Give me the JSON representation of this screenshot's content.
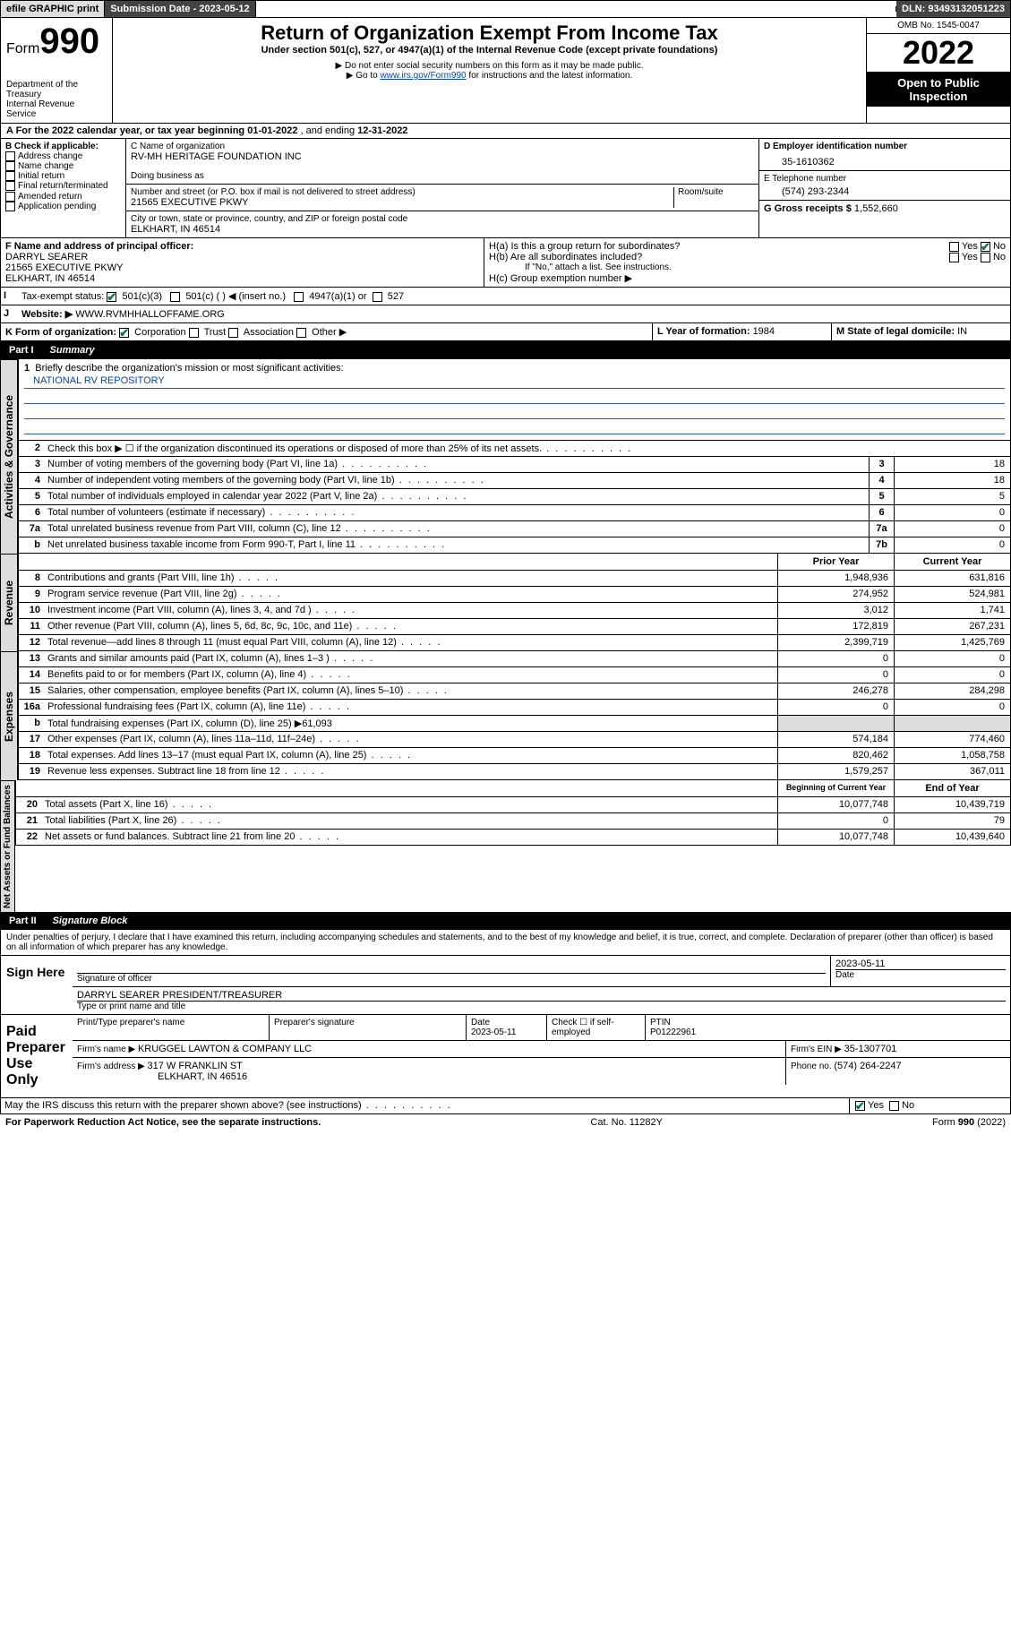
{
  "topbar": {
    "efile": "efile GRAPHIC print",
    "subdate_lbl": "Submission Date - ",
    "subdate": "2023-05-12",
    "dln_lbl": "DLN: ",
    "dln": "93493132051223"
  },
  "header": {
    "form_word": "Form",
    "form_num": "990",
    "dept": "Department of the Treasury",
    "irs": "Internal Revenue Service",
    "title": "Return of Organization Exempt From Income Tax",
    "subtitle": "Under section 501(c), 527, or 4947(a)(1) of the Internal Revenue Code (except private foundations)",
    "note1": "▶ Do not enter social security numbers on this form as it may be made public.",
    "note2_pre": "▶ Go to ",
    "note2_link": "www.irs.gov/Form990",
    "note2_post": " for instructions and the latest information.",
    "omb": "OMB No. 1545-0047",
    "year": "2022",
    "open": "Open to Public Inspection"
  },
  "row_a": {
    "text": "A For the 2022 calendar year, or tax year beginning ",
    "begin": "01-01-2022",
    "mid": " , and ending ",
    "end": "12-31-2022"
  },
  "col_b": {
    "title": "B Check if applicable:",
    "opts": [
      "Address change",
      "Name change",
      "Initial return",
      "Final return/terminated",
      "Amended return",
      "Application pending"
    ]
  },
  "col_c": {
    "name_lbl": "C Name of organization",
    "name": "RV-MH HERITAGE FOUNDATION INC",
    "dba_lbl": "Doing business as",
    "dba": "",
    "addr_lbl": "Number and street (or P.O. box if mail is not delivered to street address)",
    "room_lbl": "Room/suite",
    "addr": "21565 EXECUTIVE PKWY",
    "city_lbl": "City or town, state or province, country, and ZIP or foreign postal code",
    "city": "ELKHART, IN  46514"
  },
  "col_de": {
    "d_lbl": "D Employer identification number",
    "d_val": "35-1610362",
    "e_lbl": "E Telephone number",
    "e_val": "(574) 293-2344",
    "g_lbl": "G Gross receipts $ ",
    "g_val": "1,552,660"
  },
  "row_f": {
    "f_lbl": "F Name and address of principal officer:",
    "f_name": "DARRYL SEARER",
    "f_addr1": "21565 EXECUTIVE PKWY",
    "f_addr2": "ELKHART, IN  46514",
    "ha": "H(a)  Is this a group return for subordinates?",
    "hb": "H(b)  Are all subordinates included?",
    "hb_note": "If \"No,\" attach a list. See instructions.",
    "hc": "H(c)  Group exemption number ▶",
    "yes": "Yes",
    "no": "No"
  },
  "row_i": {
    "lbl": "Tax-exempt status:",
    "o1": "501(c)(3)",
    "o2": "501(c) (  ) ◀ (insert no.)",
    "o3": "4947(a)(1) or",
    "o4": "527"
  },
  "row_j": {
    "lbl": "Website: ▶",
    "val": "WWW.RVMHHALLOFFAME.ORG"
  },
  "row_k": {
    "lbl": "K Form of organization:",
    "o1": "Corporation",
    "o2": "Trust",
    "o3": "Association",
    "o4": "Other ▶",
    "l_lbl": "L Year of formation: ",
    "l_val": "1984",
    "m_lbl": "M State of legal domicile: ",
    "m_val": "IN"
  },
  "part1": {
    "lbl": "Part I",
    "title": "Summary"
  },
  "mission": {
    "q": "Briefly describe the organization's mission or most significant activities:",
    "a": "NATIONAL RV REPOSITORY"
  },
  "lines_gov": [
    {
      "n": "2",
      "d": "Check this box ▶ ☐  if the organization discontinued its operations or disposed of more than 25% of its net assets.",
      "box": "",
      "v": ""
    },
    {
      "n": "3",
      "d": "Number of voting members of the governing body (Part VI, line 1a)",
      "box": "3",
      "v": "18"
    },
    {
      "n": "4",
      "d": "Number of independent voting members of the governing body (Part VI, line 1b)",
      "box": "4",
      "v": "18"
    },
    {
      "n": "5",
      "d": "Total number of individuals employed in calendar year 2022 (Part V, line 2a)",
      "box": "5",
      "v": "5"
    },
    {
      "n": "6",
      "d": "Total number of volunteers (estimate if necessary)",
      "box": "6",
      "v": "0"
    },
    {
      "n": "7a",
      "d": "Total unrelated business revenue from Part VIII, column (C), line 12",
      "box": "7a",
      "v": "0"
    },
    {
      "n": "b",
      "d": "Net unrelated business taxable income from Form 990-T, Part I, line 11",
      "box": "7b",
      "v": "0"
    }
  ],
  "col_headers": {
    "prior": "Prior Year",
    "current": "Current Year",
    "begin": "Beginning of Current Year",
    "end": "End of Year"
  },
  "lines_rev": [
    {
      "n": "8",
      "d": "Contributions and grants (Part VIII, line 1h)",
      "p": "1,948,936",
      "c": "631,816"
    },
    {
      "n": "9",
      "d": "Program service revenue (Part VIII, line 2g)",
      "p": "274,952",
      "c": "524,981"
    },
    {
      "n": "10",
      "d": "Investment income (Part VIII, column (A), lines 3, 4, and 7d )",
      "p": "3,012",
      "c": "1,741"
    },
    {
      "n": "11",
      "d": "Other revenue (Part VIII, column (A), lines 5, 6d, 8c, 9c, 10c, and 11e)",
      "p": "172,819",
      "c": "267,231"
    },
    {
      "n": "12",
      "d": "Total revenue—add lines 8 through 11 (must equal Part VIII, column (A), line 12)",
      "p": "2,399,719",
      "c": "1,425,769"
    }
  ],
  "lines_exp": [
    {
      "n": "13",
      "d": "Grants and similar amounts paid (Part IX, column (A), lines 1–3 )",
      "p": "0",
      "c": "0"
    },
    {
      "n": "14",
      "d": "Benefits paid to or for members (Part IX, column (A), line 4)",
      "p": "0",
      "c": "0"
    },
    {
      "n": "15",
      "d": "Salaries, other compensation, employee benefits (Part IX, column (A), lines 5–10)",
      "p": "246,278",
      "c": "284,298"
    },
    {
      "n": "16a",
      "d": "Professional fundraising fees (Part IX, column (A), line 11e)",
      "p": "0",
      "c": "0"
    },
    {
      "n": "b",
      "d": "Total fundraising expenses (Part IX, column (D), line 25) ▶61,093",
      "p": "",
      "c": "",
      "grey": true
    },
    {
      "n": "17",
      "d": "Other expenses (Part IX, column (A), lines 11a–11d, 11f–24e)",
      "p": "574,184",
      "c": "774,460"
    },
    {
      "n": "18",
      "d": "Total expenses. Add lines 13–17 (must equal Part IX, column (A), line 25)",
      "p": "820,462",
      "c": "1,058,758"
    },
    {
      "n": "19",
      "d": "Revenue less expenses. Subtract line 18 from line 12",
      "p": "1,579,257",
      "c": "367,011"
    }
  ],
  "lines_net": [
    {
      "n": "20",
      "d": "Total assets (Part X, line 16)",
      "p": "10,077,748",
      "c": "10,439,719"
    },
    {
      "n": "21",
      "d": "Total liabilities (Part X, line 26)",
      "p": "0",
      "c": "79"
    },
    {
      "n": "22",
      "d": "Net assets or fund balances. Subtract line 21 from line 20",
      "p": "10,077,748",
      "c": "10,439,640"
    }
  ],
  "part2": {
    "lbl": "Part II",
    "title": "Signature Block"
  },
  "penalties": "Under penalties of perjury, I declare that I have examined this return, including accompanying schedules and statements, and to the best of my knowledge and belief, it is true, correct, and complete. Declaration of preparer (other than officer) is based on all information of which preparer has any knowledge.",
  "sign": {
    "here": "Sign Here",
    "sig_lbl": "Signature of officer",
    "date_lbl": "Date",
    "date": "2023-05-11",
    "name": "DARRYL SEARER  PRESIDENT/TREASURER",
    "name_lbl": "Type or print name and title"
  },
  "paid": {
    "title": "Paid Preparer Use Only",
    "prep_lbl": "Print/Type preparer's name",
    "sig_lbl": "Preparer's signature",
    "date_lbl": "Date",
    "date": "2023-05-11",
    "check_lbl": "Check ☐ if self-employed",
    "ptin_lbl": "PTIN",
    "ptin": "P01222961",
    "firm_lbl": "Firm's name    ▶ ",
    "firm": "KRUGGEL LAWTON & COMPANY LLC",
    "ein_lbl": "Firm's EIN ▶ ",
    "ein": "35-1307701",
    "addr_lbl": "Firm's address ▶ ",
    "addr1": "317 W FRANKLIN ST",
    "addr2": "ELKHART, IN  46516",
    "phone_lbl": "Phone no. ",
    "phone": "(574) 264-2247"
  },
  "discuss": {
    "q": "May the IRS discuss this return with the preparer shown above? (see instructions)",
    "yes": "Yes",
    "no": "No"
  },
  "footer": {
    "left": "For Paperwork Reduction Act Notice, see the separate instructions.",
    "mid": "Cat. No. 11282Y",
    "right": "Form 990 (2022)"
  },
  "vlabels": {
    "gov": "Activities & Governance",
    "rev": "Revenue",
    "exp": "Expenses",
    "net": "Net Assets or Fund Balances"
  }
}
